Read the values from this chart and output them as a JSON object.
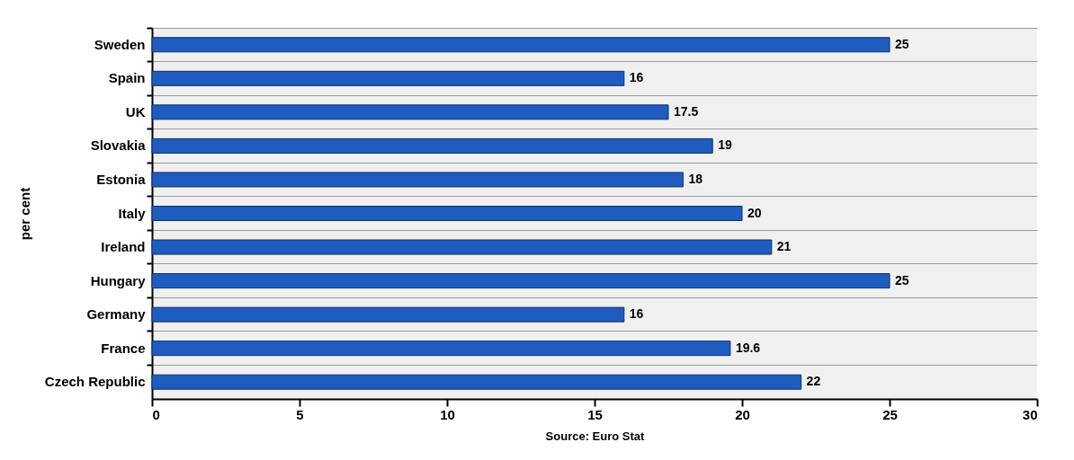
{
  "chart_data": {
    "type": "bar",
    "orientation": "horizontal",
    "ylabel": "per cent",
    "annotations": [
      "Source: Euro Stat"
    ],
    "categories": [
      "Sweden",
      "Spain",
      "UK",
      "Slovakia",
      "Estonia",
      "Italy",
      "Ireland",
      "Hungary",
      "Germany",
      "France",
      "Czech Republic"
    ],
    "values": [
      25,
      16,
      17.5,
      19,
      18,
      20,
      21,
      25,
      16,
      19.6,
      22
    ],
    "color": "#1f5cc0",
    "xlim": [
      0,
      30
    ],
    "xticks": [
      0,
      5,
      10,
      15,
      20,
      25,
      30
    ],
    "grid": "y",
    "data_labels": true
  }
}
